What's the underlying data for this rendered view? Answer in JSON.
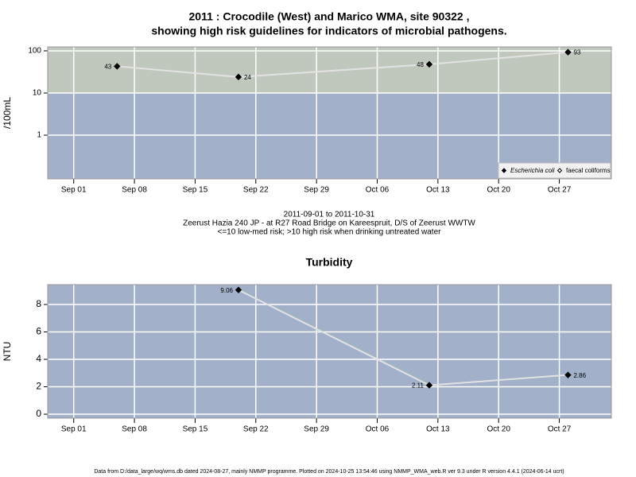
{
  "chart_data": [
    {
      "type": "line",
      "title": "2011 : Crocodile (West) and Marico WMA, site 90322 ,",
      "subtitle": "showing high risk guidelines for indicators of microbial pathogens.",
      "y_label": "/100mL",
      "log_y": true,
      "x": [
        "2011-09-06",
        "2011-09-20",
        "2011-10-12",
        "2011-10-28"
      ],
      "series": [
        {
          "name": "Escherichia coli",
          "color": "#000000",
          "values": [
            43,
            24,
            48,
            93
          ]
        },
        {
          "name": "faecal coliforms",
          "color": "#ffffff",
          "values": [
            null,
            null,
            null,
            null
          ]
        }
      ],
      "line_color": "#e2e2e2",
      "xlim": [
        "2011-08-29",
        "2011-11-02"
      ],
      "xticks": [
        {
          "value": "2011-09-01",
          "label": "Sep 01"
        },
        {
          "value": "2011-09-08",
          "label": "Sep 08"
        },
        {
          "value": "2011-09-15",
          "label": "Sep 15"
        },
        {
          "value": "2011-09-22",
          "label": "Sep 22"
        },
        {
          "value": "2011-09-29",
          "label": "Sep 29"
        },
        {
          "value": "2011-10-06",
          "label": "Oct 06"
        },
        {
          "value": "2011-10-13",
          "label": "Oct 13"
        },
        {
          "value": "2011-10-20",
          "label": "Oct 20"
        },
        {
          "value": "2011-10-27",
          "label": "Oct 27"
        }
      ],
      "ylim": [
        0.092,
        124
      ],
      "yticks": [
        1,
        10,
        100
      ],
      "grid": true,
      "threshold": 10,
      "low_color": "#a2b1c9",
      "high_color": "#c0c8be",
      "legend": "bottom-right",
      "notes": [
        "2011-09-01 to 2011-10-31",
        "Zeerust Hazia 240 JP - at R27 Road Bridge on Kareespruit, D/S of Zeerust WWTW",
        "<=10 low-med risk; >10 high risk when drinking untreated water"
      ]
    },
    {
      "type": "line",
      "title": "Turbidity",
      "y_label": "NTU",
      "log_y": false,
      "x": [
        "2011-09-20",
        "2011-10-12",
        "2011-10-28"
      ],
      "series": [
        {
          "color": "#000000",
          "values": [
            9.06,
            2.11,
            2.86
          ]
        }
      ],
      "line_color": "#e2e2e2",
      "xlim": [
        "2011-08-29",
        "2011-11-02"
      ],
      "xticks": [
        {
          "value": "2011-09-01",
          "label": "Sep 01"
        },
        {
          "value": "2011-09-08",
          "label": "Sep 08"
        },
        {
          "value": "2011-09-15",
          "label": "Sep 15"
        },
        {
          "value": "2011-09-22",
          "label": "Sep 22"
        },
        {
          "value": "2011-09-29",
          "label": "Sep 29"
        },
        {
          "value": "2011-10-06",
          "label": "Oct 06"
        },
        {
          "value": "2011-10-13",
          "label": "Oct 13"
        },
        {
          "value": "2011-10-20",
          "label": "Oct 20"
        },
        {
          "value": "2011-10-27",
          "label": "Oct 27"
        }
      ],
      "ylim": [
        -0.29,
        9.45
      ],
      "yticks": [
        0,
        2,
        4,
        6,
        8
      ],
      "grid": true,
      "low_color": "#a2b1c9"
    }
  ],
  "footer": "Data from D:/data_large/wq/wms.db dated 2024-08-27, mainly NMMP programme. Plotted on 2024-10-25 13:54:46 using NMMP_WMA_web.R ver 9.3 under R version 4.4.1 (2024-06-14 ucrt)"
}
